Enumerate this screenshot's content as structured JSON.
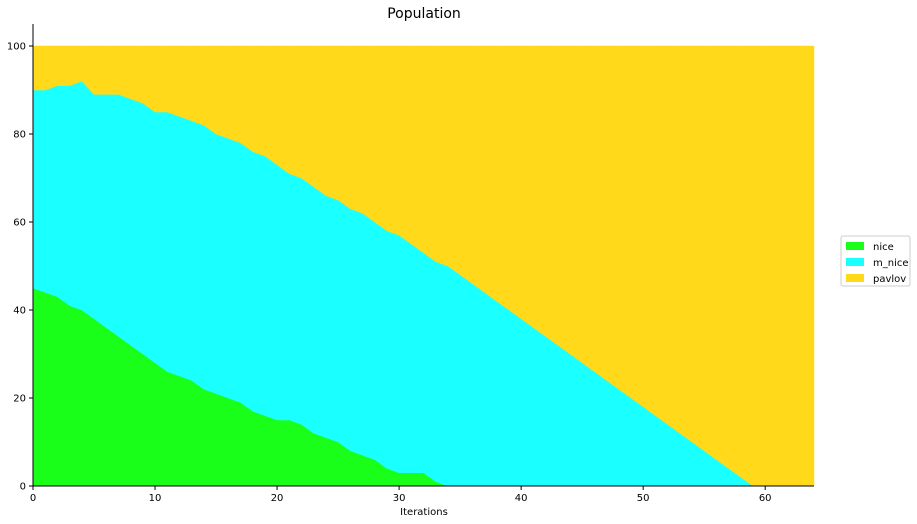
{
  "chart_data": {
    "type": "area",
    "stacked": true,
    "title": "Population",
    "xlabel": "Iterations",
    "ylabel": "",
    "xlim": [
      0,
      64
    ],
    "ylim": [
      0,
      105
    ],
    "xticks": [
      "0",
      "10",
      "20",
      "30",
      "40",
      "50",
      "60"
    ],
    "yticks": [
      "0",
      "20",
      "40",
      "60",
      "80",
      "100"
    ],
    "grid": false,
    "legend_position": "center-right",
    "x": [
      0,
      1,
      2,
      3,
      4,
      5,
      6,
      7,
      8,
      9,
      10,
      11,
      12,
      13,
      14,
      15,
      16,
      17,
      18,
      19,
      20,
      21,
      22,
      23,
      24,
      25,
      26,
      27,
      28,
      29,
      30,
      31,
      32,
      33,
      34,
      35,
      36,
      37,
      38,
      39,
      40,
      41,
      42,
      43,
      44,
      45,
      46,
      47,
      48,
      49,
      50,
      51,
      52,
      53,
      54,
      55,
      56,
      57,
      58,
      59,
      60,
      61,
      62,
      63,
      64
    ],
    "series": [
      {
        "name": "nice",
        "color": "#1aff1a",
        "values": [
          45,
          44,
          43,
          41,
          40,
          38,
          36,
          34,
          32,
          30,
          28,
          26,
          25,
          24,
          22,
          21,
          20,
          19,
          17,
          16,
          15,
          15,
          14,
          12,
          11,
          10,
          8,
          7,
          6,
          4,
          3,
          3,
          3,
          1,
          0,
          0,
          0,
          0,
          0,
          0,
          0,
          0,
          0,
          0,
          0,
          0,
          0,
          0,
          0,
          0,
          0,
          0,
          0,
          0,
          0,
          0,
          0,
          0,
          0,
          0,
          0,
          0,
          0,
          0,
          0
        ]
      },
      {
        "name": "m_nice",
        "color": "#1affff",
        "values": [
          45,
          46,
          48,
          50,
          52,
          51,
          53,
          55,
          56,
          57,
          57,
          59,
          59,
          59,
          60,
          59,
          59,
          59,
          59,
          59,
          58,
          56,
          56,
          56,
          55,
          55,
          55,
          55,
          54,
          54,
          54,
          52,
          50,
          50,
          50,
          48,
          46,
          44,
          42,
          40,
          38,
          36,
          34,
          32,
          30,
          28,
          26,
          24,
          22,
          20,
          18,
          16,
          14,
          12,
          10,
          8,
          6,
          4,
          2,
          0,
          0,
          0,
          0,
          0,
          0
        ]
      },
      {
        "name": "pavlov",
        "color": "#ffd91a",
        "values": [
          10,
          10,
          9,
          9,
          8,
          11,
          11,
          11,
          12,
          13,
          15,
          15,
          16,
          17,
          18,
          20,
          21,
          22,
          24,
          25,
          27,
          29,
          30,
          32,
          34,
          35,
          37,
          38,
          40,
          42,
          43,
          45,
          47,
          49,
          50,
          52,
          54,
          56,
          58,
          60,
          62,
          64,
          66,
          68,
          70,
          72,
          74,
          76,
          78,
          80,
          82,
          84,
          86,
          88,
          90,
          92,
          94,
          96,
          98,
          100,
          100,
          100,
          100,
          100,
          100
        ]
      }
    ]
  }
}
